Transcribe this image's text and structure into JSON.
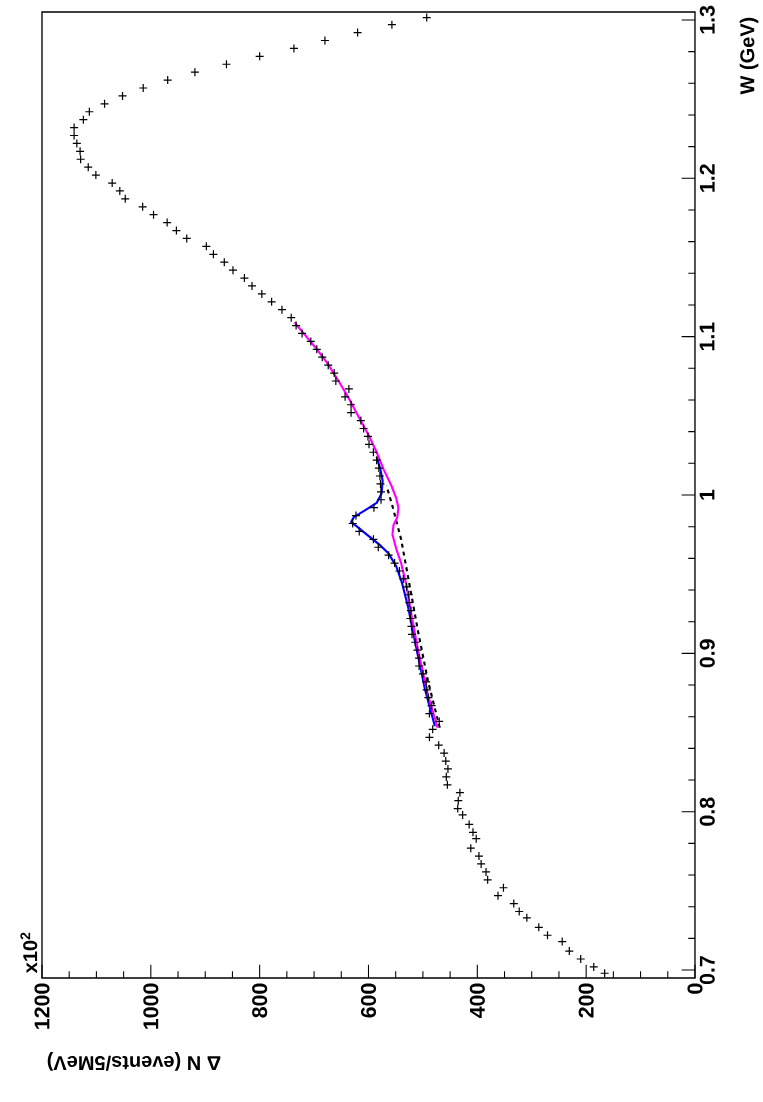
{
  "chart_data": {
    "type": "scatter",
    "xlabel": "Δ N (events/5MeV)",
    "ylabel": "W (GeV)",
    "annotations": [
      "x10$^{2}$"
    ],
    "xlim": [
      1200,
      0
    ],
    "ylim": [
      0.695,
      1.305
    ],
    "xticks": [
      0,
      200,
      400,
      600,
      800,
      1000,
      1200
    ],
    "yticks": [
      0.7,
      0.8,
      0.9,
      1,
      1.1,
      1.2,
      1.3
    ],
    "series": [
      {
        "type": "scatter",
        "color": "#000000",
        "marker": "cross",
        "values": [
          0.698,
          0.702,
          0.707,
          0.712,
          0.718,
          0.722,
          0.727,
          0.733,
          0.737,
          0.742,
          0.747,
          0.752,
          0.757,
          0.762,
          0.767,
          0.772,
          0.777,
          0.783,
          0.787,
          0.792,
          0.798,
          0.802,
          0.807,
          0.812,
          0.817,
          0.822,
          0.827,
          0.832,
          0.837,
          0.842,
          0.847,
          0.852,
          0.857,
          0.862,
          0.867,
          0.872,
          0.877,
          0.882,
          0.887,
          0.892,
          0.897,
          0.902,
          0.907,
          0.912,
          0.917,
          0.922,
          0.927,
          0.932,
          0.937,
          0.942,
          0.947,
          0.952,
          0.957,
          0.962,
          0.967,
          0.972,
          0.977,
          0.982,
          0.987,
          0.992,
          0.997,
          1.002,
          1.007,
          1.012,
          1.017,
          1.022,
          1.027,
          1.032,
          1.037,
          1.042,
          1.047,
          1.052,
          1.057,
          1.062,
          1.067,
          1.072,
          1.077,
          1.082,
          1.087,
          1.092,
          1.097,
          1.102,
          1.107,
          1.112,
          1.117,
          1.122,
          1.127,
          1.132,
          1.137,
          1.142,
          1.147,
          1.152,
          1.157,
          1.162,
          1.167,
          1.172,
          1.177,
          1.182,
          1.187,
          1.192,
          1.197,
          1.202,
          1.207,
          1.212,
          1.217,
          1.222,
          1.227,
          1.232,
          1.237,
          1.242,
          1.247,
          1.252,
          1.257,
          1.262,
          1.267,
          1.272,
          1.277,
          1.282,
          1.287,
          1.292,
          1.297,
          1.3015
        ],
        "x": [
          166,
          186,
          210,
          231,
          244,
          271,
          287,
          309,
          323,
          333,
          362,
          352,
          381,
          384,
          393,
          397,
          412,
          402,
          408,
          415,
          427,
          436,
          435,
          432,
          455,
          457,
          454,
          458,
          461,
          471,
          488,
          482,
          470,
          488,
          484,
          490,
          493,
          494,
          500,
          507,
          507,
          510,
          514,
          520,
          521,
          523,
          522,
          525,
          526,
          530,
          536,
          543,
          552,
          563,
          582,
          591,
          617,
          629,
          623,
          590,
          577,
          577,
          578,
          579,
          581,
          585,
          591,
          599,
          601,
          609,
          614,
          632,
          632,
          643,
          636,
          660,
          663,
          674,
          685,
          695,
          706,
          722,
          733,
          742,
          759,
          778,
          796,
          814,
          828,
          849,
          865,
          885,
          898,
          934,
          953,
          970,
          995,
          1015,
          1047,
          1057,
          1071,
          1101,
          1115,
          1129,
          1130,
          1136,
          1141,
          1141,
          1124,
          1113,
          1085,
          1052,
          1014,
          969,
          919,
          861,
          800,
          737,
          680,
          620,
          557,
          493
        ]
      },
      {
        "type": "line",
        "color": "#0000ff",
        "marker": "none",
        "line_style": "solid",
        "values": [
          0.854,
          0.877,
          0.905,
          0.929,
          0.944,
          0.955,
          0.963,
          0.969,
          0.975,
          0.98,
          0.983,
          0.986,
          0.99,
          0.995,
          1.001,
          1.009,
          1.016,
          1.024
        ],
        "x": [
          478,
          496,
          513,
          527,
          538,
          549,
          563,
          581,
          603,
          621,
          632,
          627,
          608,
          585,
          576,
          574,
          578,
          585
        ]
      },
      {
        "type": "line",
        "color": "#000000",
        "marker": "none",
        "line_style": "dashed",
        "values": [
          0.853,
          0.883,
          0.914,
          0.944,
          0.972,
          0.993,
          1.006
        ],
        "x": [
          469,
          491,
          509,
          525,
          540,
          556,
          567
        ]
      },
      {
        "type": "line",
        "color": "#ff00ff",
        "marker": "none",
        "line_style": "solid",
        "values": [
          0.853,
          0.874,
          0.902,
          0.926,
          0.944,
          0.957,
          0.966,
          0.975,
          0.981,
          0.986,
          0.992,
          0.998,
          1.006,
          1.016,
          1.027,
          1.038,
          1.048,
          1.061,
          1.072,
          1.083,
          1.093,
          1.109
        ],
        "x": [
          473,
          491,
          509,
          522,
          531,
          540,
          549,
          556,
          554,
          547,
          545,
          549,
          558,
          572,
          585,
          600,
          616,
          636,
          655,
          675,
          697,
          736
        ]
      }
    ]
  }
}
